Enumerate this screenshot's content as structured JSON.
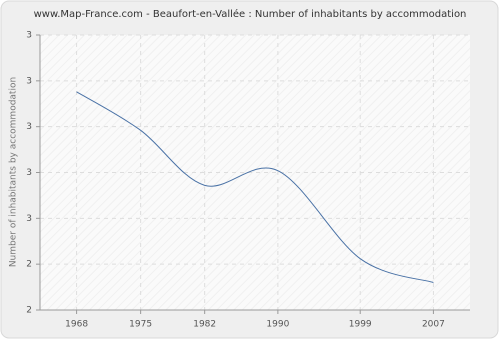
{
  "chart_data": {
    "type": "line",
    "title": "www.Map-France.com - Beaufort-en-Vallée : Number of inhabitants by accommodation",
    "y_label": "Number of inhabitants by accommodation",
    "x": [
      1968,
      1975,
      1982,
      1990,
      1999,
      2007
    ],
    "series": [
      {
        "name": "Number of inhabitants by accommodation",
        "color": "#4a72a6",
        "values": [
          3.19,
          2.98,
          2.68,
          2.76,
          2.28,
          2.15
        ]
      }
    ],
    "xlim": [
      1964,
      2011
    ],
    "xticks": [
      1968,
      1975,
      1982,
      1990,
      1999,
      2007
    ],
    "ylim": [
      2,
      3.5
    ],
    "yticks": [
      {
        "value": 2,
        "label": "2"
      },
      {
        "value": 2.25,
        "label": "2"
      },
      {
        "value": 2.5,
        "label": "3"
      },
      {
        "value": 2.75,
        "label": "3"
      },
      {
        "value": 3,
        "label": "3"
      },
      {
        "value": 3.25,
        "label": "3"
      },
      {
        "value": 3.5,
        "label": "3"
      }
    ],
    "grid": true
  }
}
